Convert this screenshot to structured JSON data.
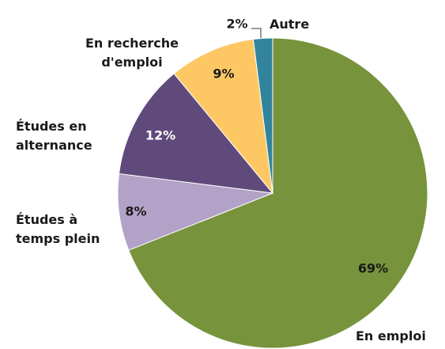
{
  "chart_data": {
    "type": "pie",
    "categories": [
      "En emploi",
      "Études à\ntemps plein",
      "Études en\nalternance",
      "En recherche\nd'emploi",
      "Autre"
    ],
    "values": [
      69,
      8,
      12,
      9,
      2
    ],
    "value_labels": [
      "69%",
      "8%",
      "12%",
      "9%",
      "2%"
    ],
    "colors": [
      "#77933c",
      "#b3a2c7",
      "#604a7b",
      "#fdc864",
      "#31849b"
    ]
  }
}
